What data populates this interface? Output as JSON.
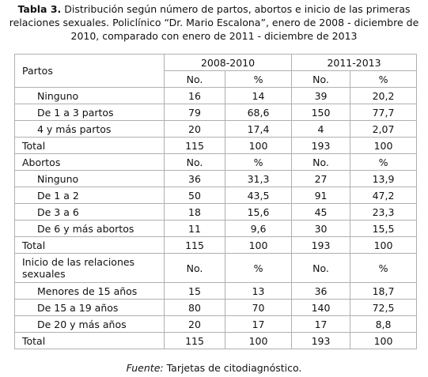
{
  "caption": {
    "label": "Tabla 3.",
    "text": "Distribución según número de partos, abortos e inicio de las primeras relaciones sexuales. Policlínico “Dr. Mario Escalona”, enero de 2008 - diciembre de 2010, comparado con enero de 2011 - diciembre de 2013"
  },
  "table": {
    "periods": [
      "2008-2010",
      "2011-2013"
    ],
    "sections": [
      {
        "title": "Partos",
        "col_headers": [
          "No.",
          "%",
          "No.",
          "%"
        ],
        "rows": [
          [
            "Ninguno",
            "16",
            "14",
            "39",
            "20,2"
          ],
          [
            "De 1 a 3 partos",
            "79",
            "68,6",
            "150",
            "77,7"
          ],
          [
            "4 y más partos",
            "20",
            "17,4",
            "4",
            "2,07"
          ]
        ],
        "total": [
          "Total",
          "115",
          "100",
          "193",
          "100"
        ]
      },
      {
        "title": "Abortos",
        "col_headers": [
          "No.",
          "%",
          "No.",
          "%"
        ],
        "rows": [
          [
            "Ninguno",
            "36",
            "31,3",
            "27",
            "13,9"
          ],
          [
            "De 1 a 2",
            "50",
            "43,5",
            "91",
            "47,2"
          ],
          [
            "De 3  a 6",
            "18",
            "15,6",
            "45",
            "23,3"
          ],
          [
            "De 6 y más abortos",
            "11",
            "9,6",
            "30",
            "15,5"
          ]
        ],
        "total": [
          "Total",
          "115",
          "100",
          "193",
          "100"
        ]
      },
      {
        "title": "Inicio de las relaciones sexuales",
        "col_headers": [
          "No.",
          "%",
          "No.",
          "%"
        ],
        "rows": [
          [
            "Menores de 15 años",
            "15",
            "13",
            "36",
            "18,7"
          ],
          [
            "De 15 a 19 años",
            "80",
            "70",
            "140",
            "72,5"
          ],
          [
            "De 20 y más años",
            "20",
            "17",
            "17",
            "8,8"
          ]
        ],
        "total": [
          "Total",
          "115",
          "100",
          "193",
          "100"
        ]
      }
    ]
  },
  "footer": {
    "label": "Fuente:",
    "text": "Tarjetas de citodiagnóstico."
  }
}
